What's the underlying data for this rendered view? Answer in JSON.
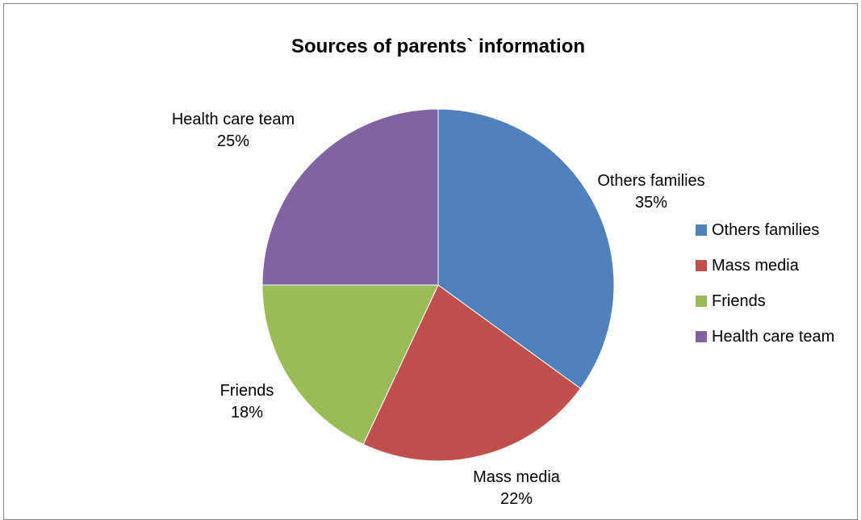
{
  "chart_data": {
    "type": "pie",
    "title": "Sources of parents` information",
    "categories": [
      "Others families",
      "Mass media",
      "Friends",
      "Health care team"
    ],
    "values": [
      35,
      22,
      18,
      25
    ],
    "value_labels": [
      "35%",
      "22%",
      "18%",
      "25%"
    ],
    "colors": [
      "#4F81BD",
      "#C0504D",
      "#9BBB59",
      "#8064A2"
    ],
    "legend_position": "right",
    "start_angle": "12 o'clock",
    "direction": "clockwise"
  }
}
